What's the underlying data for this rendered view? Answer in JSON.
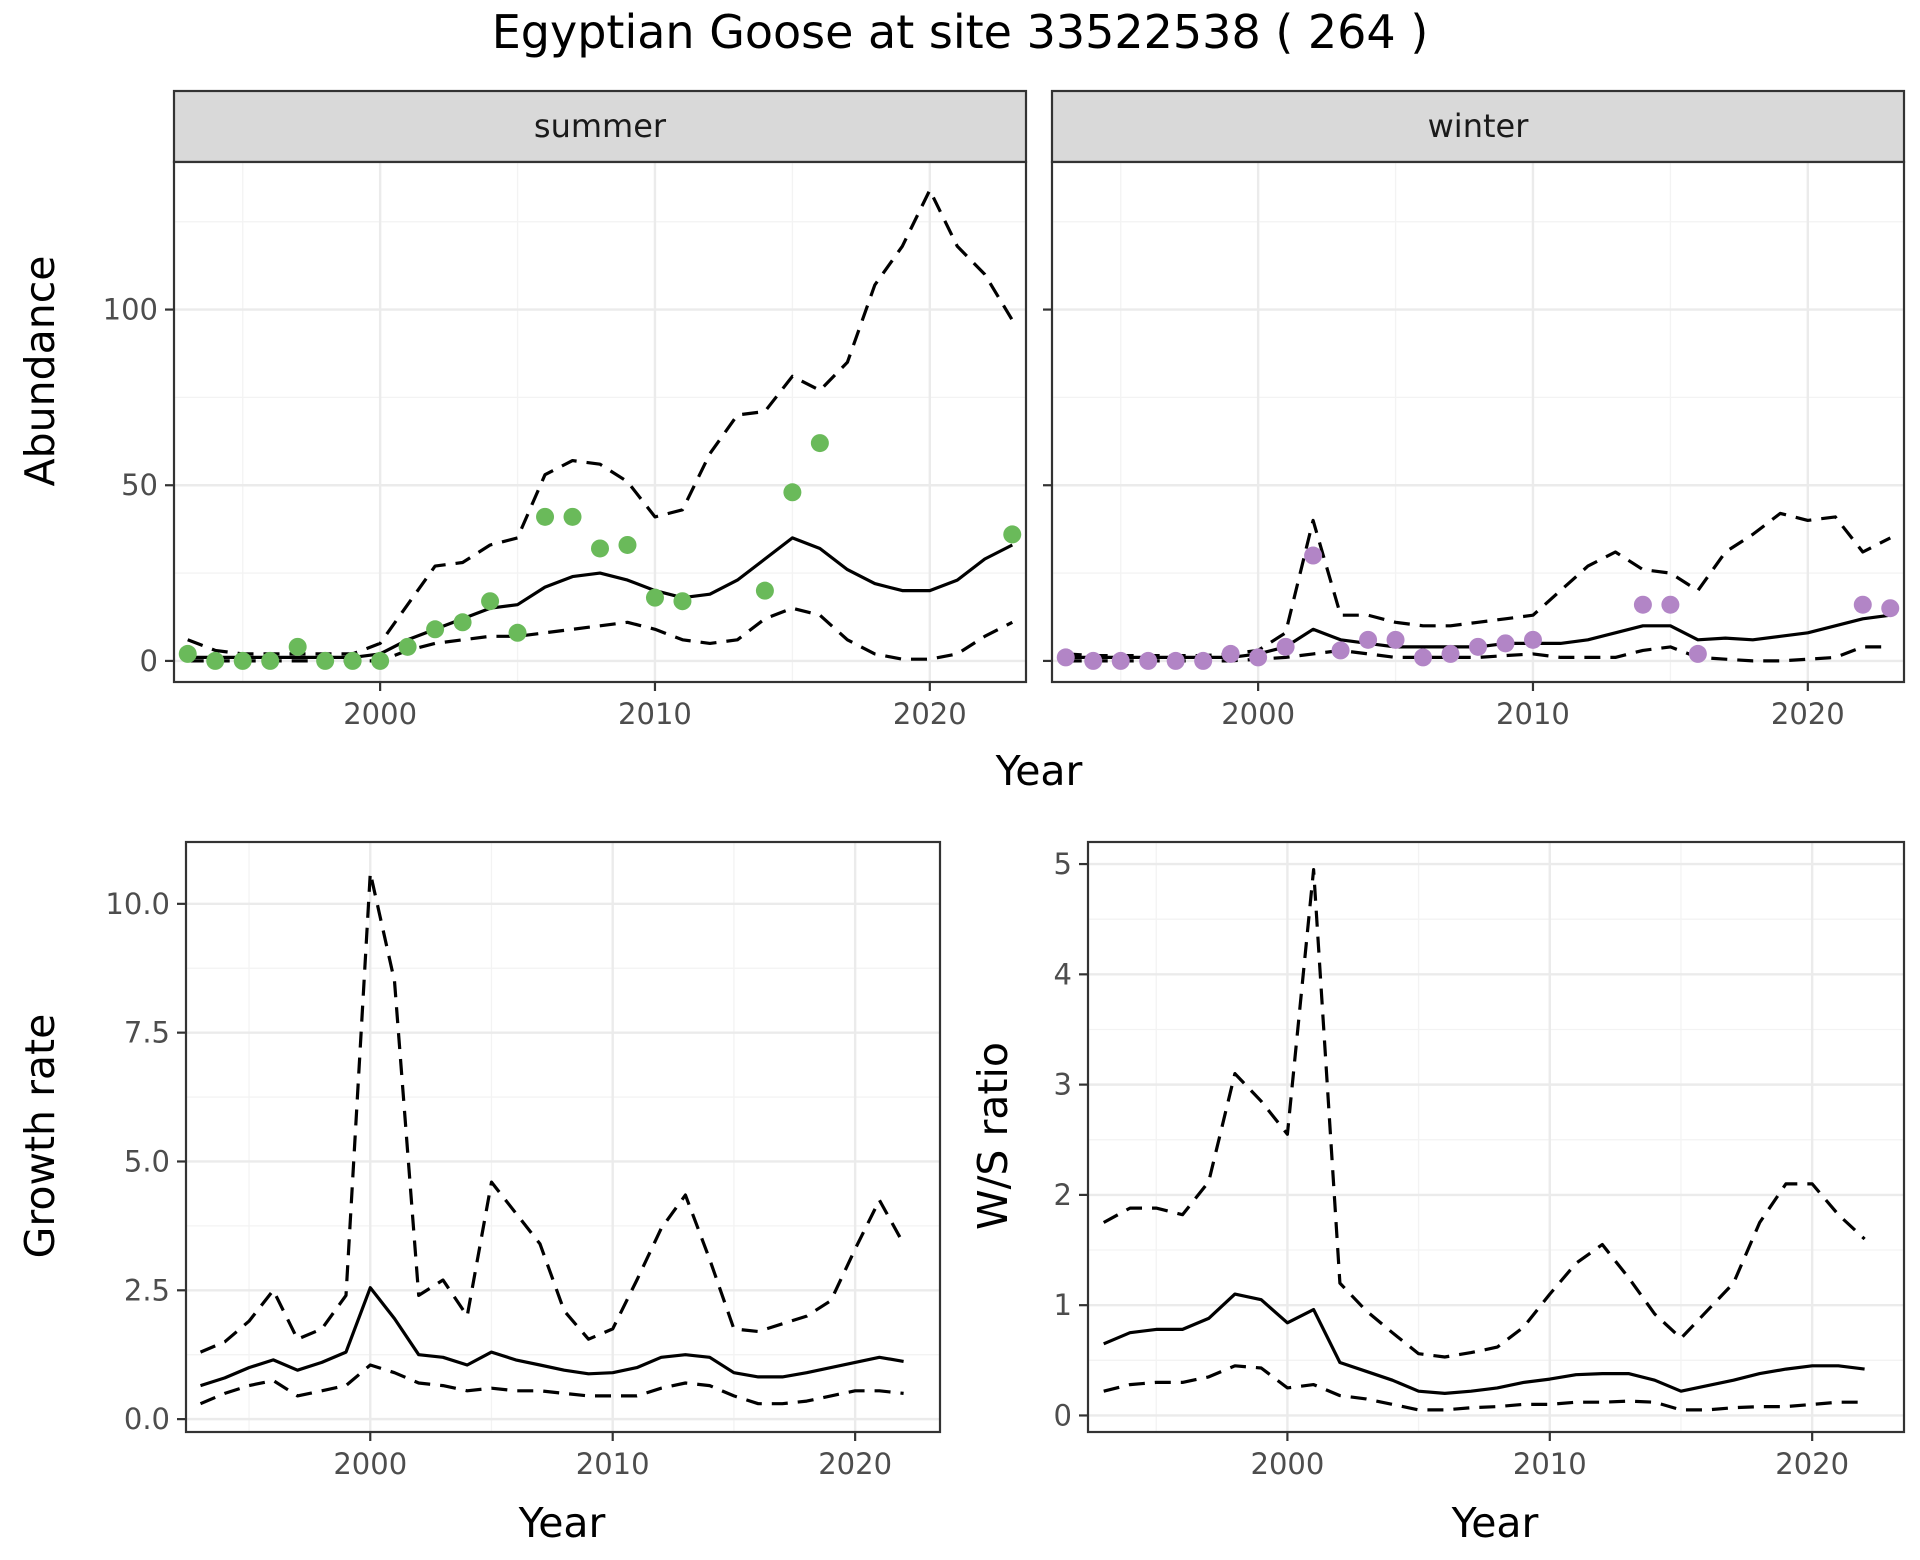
{
  "title": "Egyptian Goose at site 33522538 ( 264 )",
  "colors": {
    "summer": "#6aba5a",
    "winter": "#b285c6"
  },
  "chart_data": [
    {
      "type": "line",
      "panel": "summer",
      "strip": "summer",
      "ylabel": "Abundance",
      "xlabel": "",
      "xlim": [
        1992.5,
        2023.5
      ],
      "ylim": [
        -6,
        142
      ],
      "xticks": [
        2000,
        2010,
        2020
      ],
      "yticks": [
        0,
        50,
        100
      ],
      "ytick_labels": [
        "0",
        "50",
        "100"
      ],
      "x": [
        1993,
        1994,
        1995,
        1996,
        1997,
        1998,
        1999,
        2000,
        2001,
        2002,
        2003,
        2004,
        2005,
        2006,
        2007,
        2008,
        2009,
        2010,
        2011,
        2012,
        2013,
        2014,
        2015,
        2016,
        2017,
        2018,
        2019,
        2020,
        2021,
        2022,
        2023
      ],
      "series": [
        {
          "role": "mean",
          "values": [
            1,
            1,
            1,
            1,
            1,
            1,
            1,
            2,
            6,
            9,
            12,
            15,
            16,
            21,
            24,
            25,
            23,
            20,
            18,
            19,
            23,
            29,
            35,
            32,
            26,
            22,
            20,
            20,
            23,
            29,
            33
          ]
        },
        {
          "role": "upper",
          "values": [
            6,
            3,
            2,
            2,
            2,
            2,
            2,
            5,
            16,
            27,
            28,
            33,
            35,
            53,
            57,
            56,
            51,
            41,
            43,
            59,
            70,
            71,
            81,
            77,
            85,
            107,
            118,
            134,
            118,
            110,
            97
          ]
        },
        {
          "role": "lower",
          "values": [
            0,
            0,
            0,
            0,
            0,
            0,
            0,
            0,
            3,
            5,
            6,
            7,
            7,
            8,
            9,
            10,
            11,
            9,
            6,
            5,
            6,
            12,
            15,
            13,
            6,
            2,
            0.5,
            0.5,
            2,
            7,
            11
          ]
        }
      ],
      "points": {
        "x": [
          1993,
          1994,
          1995,
          1996,
          1997,
          1998,
          1999,
          2000,
          2001,
          2002,
          2003,
          2004,
          2005,
          2006,
          2007,
          2008,
          2009,
          2010,
          2011,
          2014,
          2015,
          2016,
          2023
        ],
        "y": [
          2,
          0,
          0,
          0,
          4,
          0,
          0,
          0,
          4,
          9,
          11,
          17,
          8,
          41,
          41,
          32,
          33,
          18,
          17,
          20,
          48,
          62,
          36
        ]
      }
    },
    {
      "type": "line",
      "panel": "winter",
      "strip": "winter",
      "ylabel": "",
      "xlabel": "",
      "xlim": [
        1992.5,
        2023.5
      ],
      "ylim": [
        -6,
        142
      ],
      "xticks": [
        2000,
        2010,
        2020
      ],
      "yticks": [
        0,
        50,
        100
      ],
      "ytick_labels": [],
      "x": [
        1993,
        1994,
        1995,
        1996,
        1997,
        1998,
        1999,
        2000,
        2001,
        2002,
        2003,
        2004,
        2005,
        2006,
        2007,
        2008,
        2009,
        2010,
        2011,
        2012,
        2013,
        2014,
        2015,
        2016,
        2017,
        2018,
        2019,
        2020,
        2021,
        2022,
        2023
      ],
      "series": [
        {
          "role": "mean",
          "values": [
            1,
            1,
            1,
            1,
            1,
            1,
            1,
            2,
            4,
            9,
            6,
            5,
            4,
            4,
            4,
            4,
            5,
            5,
            5,
            6,
            8,
            10,
            10,
            6,
            6.5,
            6,
            7,
            8,
            10,
            12,
            13
          ]
        },
        {
          "role": "upper",
          "values": [
            2,
            1.5,
            1.5,
            1.5,
            1.5,
            1.5,
            2,
            3,
            8,
            40,
            13,
            13,
            11,
            10,
            10,
            11,
            12,
            13,
            20,
            27,
            31,
            26,
            25,
            20,
            31,
            36,
            42,
            40,
            41,
            31,
            35
          ]
        },
        {
          "role": "lower",
          "values": [
            0,
            0,
            0,
            0,
            0,
            0,
            0,
            0.5,
            1,
            2,
            3,
            2,
            1,
            1,
            1,
            1,
            1.5,
            2,
            1,
            1,
            1,
            3,
            4,
            1,
            0.5,
            0,
            0,
            0.5,
            1,
            4,
            4
          ]
        }
      ],
      "points": {
        "x": [
          1993,
          1994,
          1995,
          1996,
          1997,
          1998,
          1999,
          2000,
          2001,
          2002,
          2003,
          2004,
          2005,
          2006,
          2007,
          2008,
          2009,
          2010,
          2014,
          2015,
          2016,
          2022,
          2023
        ],
        "y": [
          1,
          0,
          0,
          0,
          0,
          0,
          2,
          1,
          4,
          30,
          3,
          6,
          6,
          1,
          2,
          4,
          5,
          6,
          16,
          16,
          2,
          16,
          15
        ]
      }
    },
    {
      "type": "line",
      "panel": "growth",
      "ylabel": "Growth rate",
      "xlabel": "Year",
      "xlim": [
        1992.4,
        2023.5
      ],
      "ylim": [
        -0.25,
        11.2
      ],
      "xticks": [
        2000,
        2010,
        2020
      ],
      "yticks": [
        0,
        2.5,
        5,
        7.5,
        10
      ],
      "ytick_labels": [
        "0.0",
        "2.5",
        "5.0",
        "7.5",
        "10.0"
      ],
      "x": [
        1993,
        1994,
        1995,
        1996,
        1997,
        1998,
        1999,
        2000,
        2001,
        2002,
        2003,
        2004,
        2005,
        2006,
        2007,
        2008,
        2009,
        2010,
        2011,
        2012,
        2013,
        2014,
        2015,
        2016,
        2017,
        2018,
        2019,
        2020,
        2021,
        2022
      ],
      "series": [
        {
          "role": "mean",
          "values": [
            0.65,
            0.8,
            1.0,
            1.15,
            0.95,
            1.1,
            1.3,
            2.55,
            1.95,
            1.25,
            1.2,
            1.05,
            1.3,
            1.15,
            1.05,
            0.95,
            0.88,
            0.9,
            1.0,
            1.2,
            1.25,
            1.2,
            0.9,
            0.82,
            0.82,
            0.9,
            1.0,
            1.1,
            1.2,
            1.12
          ]
        },
        {
          "role": "upper",
          "values": [
            1.3,
            1.5,
            1.9,
            2.5,
            1.55,
            1.75,
            2.4,
            10.6,
            8.5,
            2.4,
            2.7,
            2.0,
            4.6,
            4.0,
            3.4,
            2.1,
            1.55,
            1.75,
            2.7,
            3.7,
            4.35,
            3.1,
            1.75,
            1.7,
            1.85,
            2.0,
            2.3,
            3.3,
            4.25,
            3.4
          ]
        },
        {
          "role": "lower",
          "values": [
            0.3,
            0.5,
            0.65,
            0.75,
            0.45,
            0.55,
            0.65,
            1.05,
            0.9,
            0.7,
            0.65,
            0.55,
            0.6,
            0.55,
            0.55,
            0.5,
            0.45,
            0.45,
            0.45,
            0.6,
            0.7,
            0.65,
            0.45,
            0.3,
            0.3,
            0.35,
            0.45,
            0.55,
            0.55,
            0.5
          ]
        }
      ]
    },
    {
      "type": "line",
      "panel": "ratio",
      "ylabel": "W/S ratio",
      "xlabel": "Year",
      "xlim": [
        1992.4,
        2023.5
      ],
      "ylim": [
        -0.15,
        5.2
      ],
      "xticks": [
        2000,
        2010,
        2020
      ],
      "yticks": [
        0,
        1,
        2,
        3,
        4,
        5
      ],
      "ytick_labels": [
        "0",
        "1",
        "2",
        "3",
        "4",
        "5"
      ],
      "x": [
        1993,
        1994,
        1995,
        1996,
        1997,
        1998,
        1999,
        2000,
        2001,
        2002,
        2003,
        2004,
        2005,
        2006,
        2007,
        2008,
        2009,
        2010,
        2011,
        2012,
        2013,
        2014,
        2015,
        2016,
        2017,
        2018,
        2019,
        2020,
        2021,
        2022
      ],
      "series": [
        {
          "role": "mean",
          "values": [
            0.65,
            0.75,
            0.78,
            0.78,
            0.88,
            1.1,
            1.05,
            0.84,
            0.96,
            0.48,
            0.4,
            0.32,
            0.22,
            0.2,
            0.22,
            0.25,
            0.3,
            0.33,
            0.37,
            0.38,
            0.38,
            0.32,
            0.22,
            0.27,
            0.32,
            0.38,
            0.42,
            0.45,
            0.45,
            0.42
          ]
        },
        {
          "role": "upper",
          "values": [
            1.75,
            1.88,
            1.88,
            1.82,
            2.12,
            3.1,
            2.85,
            2.55,
            4.95,
            1.2,
            0.95,
            0.75,
            0.56,
            0.53,
            0.57,
            0.62,
            0.8,
            1.1,
            1.38,
            1.55,
            1.25,
            0.92,
            0.7,
            0.95,
            1.2,
            1.75,
            2.1,
            2.1,
            1.82,
            1.6
          ]
        },
        {
          "role": "lower",
          "values": [
            0.22,
            0.28,
            0.3,
            0.3,
            0.35,
            0.45,
            0.43,
            0.25,
            0.28,
            0.18,
            0.15,
            0.1,
            0.05,
            0.05,
            0.07,
            0.08,
            0.1,
            0.1,
            0.12,
            0.12,
            0.13,
            0.12,
            0.05,
            0.05,
            0.07,
            0.08,
            0.08,
            0.1,
            0.12,
            0.12
          ]
        }
      ]
    }
  ]
}
